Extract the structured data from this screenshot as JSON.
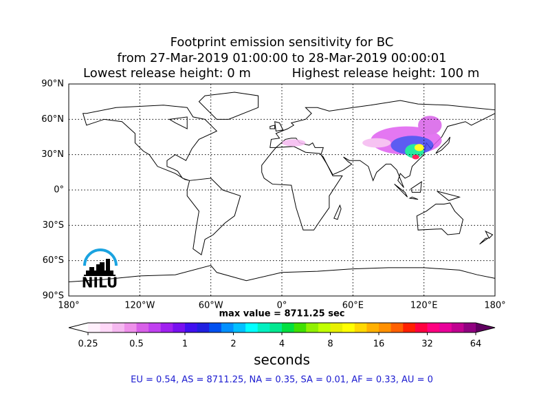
{
  "map": {
    "title": [
      "Footprint emission sensitivity for BC",
      "from 27-Mar-2019 01:00:00 to 28-Mar-2019 00:00:01"
    ],
    "lowest_release": "Lowest release height: 0 m",
    "highest_release": "Highest release height: 100 m",
    "xlim": [
      -180,
      180
    ],
    "ylim": [
      -90,
      90
    ],
    "xticks": [
      {
        "value": -180,
        "label": "180°"
      },
      {
        "value": -120,
        "label": "120°W"
      },
      {
        "value": -60,
        "label": "60°W"
      },
      {
        "value": 0,
        "label": "0°"
      },
      {
        "value": 60,
        "label": "60°E"
      },
      {
        "value": 120,
        "label": "120°E"
      },
      {
        "value": 180,
        "label": "180°"
      }
    ],
    "yticks": [
      {
        "value": -90,
        "label": "90°S"
      },
      {
        "value": -60,
        "label": "60°S"
      },
      {
        "value": -30,
        "label": "30°S"
      },
      {
        "value": 0,
        "label": "0°"
      },
      {
        "value": 30,
        "label": "30°N"
      },
      {
        "value": 60,
        "label": "60°N"
      },
      {
        "value": 90,
        "label": "90°N"
      }
    ],
    "grid": true,
    "max_value_text": "max value = 8711.25 sec"
  },
  "colorbar": {
    "log": true,
    "lim": [
      0.25,
      64
    ],
    "ticks": [
      0.25,
      0.5,
      1,
      2,
      4,
      8,
      16,
      32,
      64
    ],
    "colors": [
      "#fff0fc",
      "#ffd8f8",
      "#f5b8f0",
      "#ee90ea",
      "#d860e8",
      "#c040f0",
      "#a020f0",
      "#7810f0",
      "#4010f0",
      "#2020e0",
      "#0050f0",
      "#0090ff",
      "#00c0ff",
      "#00ffff",
      "#00f0c0",
      "#00e890",
      "#00e040",
      "#40e000",
      "#90f000",
      "#c0ff00",
      "#e8f000",
      "#ffff00",
      "#ffd800",
      "#ffb000",
      "#ff9000",
      "#ff6000",
      "#ff2000",
      "#ff0040",
      "#ff0080",
      "#e8009a",
      "#c00090",
      "#900080"
    ],
    "extend_colors": [
      "#ffffff",
      "#600060"
    ],
    "label": "seconds"
  },
  "stats_text": "EU = 0.54,  AS = 8711.25,  NA = 0.35,  SA = 0.01,  AF = 0.33,  AU = 0",
  "logo_text": "NILU"
}
